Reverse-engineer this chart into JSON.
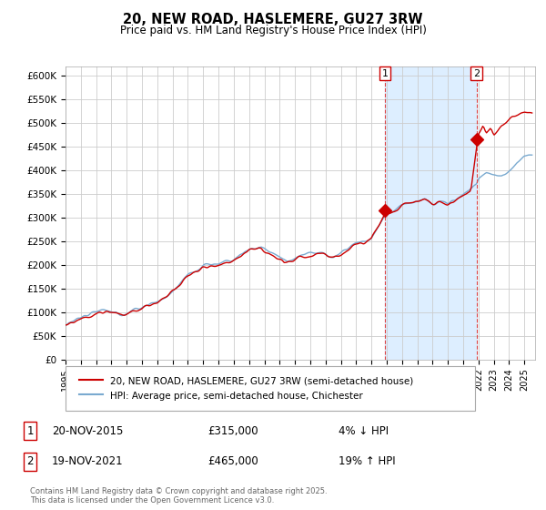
{
  "title": "20, NEW ROAD, HASLEMERE, GU27 3RW",
  "subtitle": "Price paid vs. HM Land Registry's House Price Index (HPI)",
  "legend_line1": "20, NEW ROAD, HASLEMERE, GU27 3RW (semi-detached house)",
  "legend_line2": "HPI: Average price, semi-detached house, Chichester",
  "annotation1_label": "1",
  "annotation1_date": "20-NOV-2015",
  "annotation1_price": "£315,000",
  "annotation1_hpi": "4% ↓ HPI",
  "annotation2_label": "2",
  "annotation2_date": "19-NOV-2021",
  "annotation2_price": "£465,000",
  "annotation2_hpi": "19% ↑ HPI",
  "footer": "Contains HM Land Registry data © Crown copyright and database right 2025.\nThis data is licensed under the Open Government Licence v3.0.",
  "price_color": "#cc0000",
  "hpi_color": "#7aaad0",
  "shade_color": "#ddeeff",
  "annotation_color": "#dd4444",
  "ylim": [
    0,
    620000
  ],
  "yticks": [
    0,
    50000,
    100000,
    150000,
    200000,
    250000,
    300000,
    350000,
    400000,
    450000,
    500000,
    550000,
    600000
  ],
  "background_color": "#ffffff",
  "grid_color": "#cccccc",
  "sale1_x": 2015.88,
  "sale1_y": 315000,
  "sale2_x": 2021.88,
  "sale2_y": 465000,
  "xmin": 1995,
  "xmax": 2025.7
}
